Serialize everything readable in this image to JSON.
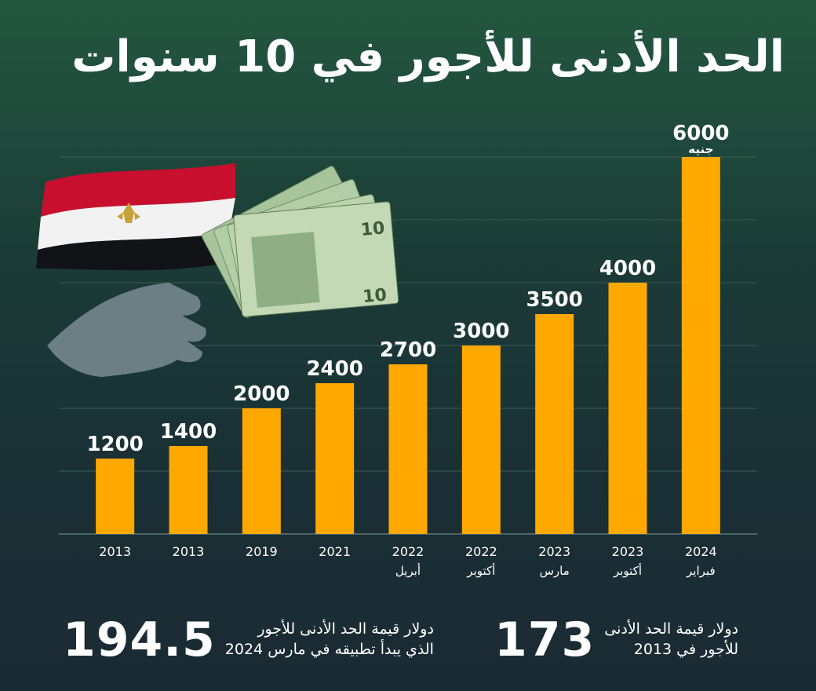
{
  "title": "الحد الأدنى للأجور في 10 سنوات",
  "colors": {
    "bar": "#ffa800",
    "background": "#1e3f3a",
    "text": "#ffffff"
  },
  "chart_data": {
    "type": "bar",
    "categories": [
      "2013",
      "2013",
      "2019",
      "2021",
      "2022",
      "2022",
      "2023",
      "2023",
      "2024"
    ],
    "category_sublabels": [
      "",
      "",
      "",
      "",
      "أبريل",
      "أكتوبر",
      "مارس",
      "أكتوبر",
      "فبراير"
    ],
    "values": [
      1200,
      1400,
      2000,
      2400,
      2700,
      3000,
      3500,
      4000,
      6000
    ],
    "value_labels": [
      "1200",
      "1400",
      "2000",
      "2400",
      "2700",
      "3000",
      "3500",
      "4000",
      "6000"
    ],
    "last_value_unit": "جنيه",
    "ylim": [
      0,
      6000
    ],
    "grid": true
  },
  "stats": {
    "left": {
      "number": "194.5",
      "text_line1": "دولار قيمة الحد الأدنى للأجور",
      "text_line2": "الذي يبدأ تطبيقه في مارس 2024"
    },
    "right": {
      "number": "173",
      "text_line1": "دولار قيمة الحد الأدنى",
      "text_line2": "للأجور في 2013"
    }
  },
  "illustration": {
    "flag": "egypt-flag",
    "banknotes": "banknote-10-pounds",
    "hand": "hand-holding-money"
  }
}
